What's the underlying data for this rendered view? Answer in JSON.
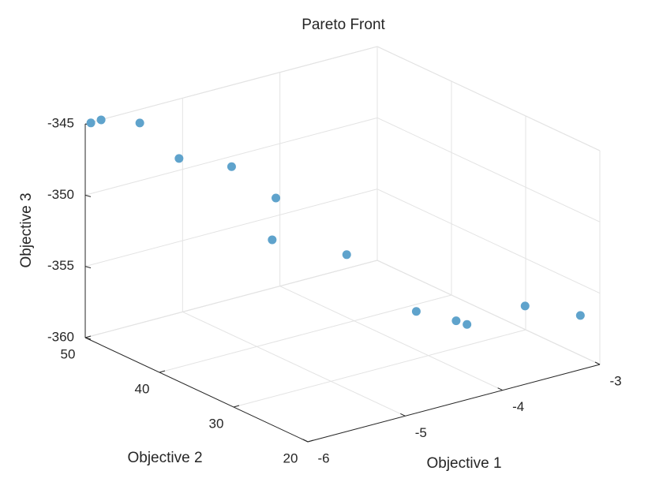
{
  "chart_data": {
    "type": "scatter3d",
    "title": "Pareto Front",
    "xlabel": "Objective 1",
    "ylabel": "Objective 2",
    "zlabel": "Objective 3",
    "x": [
      -5.95,
      -5.84,
      -5.63,
      -5.57,
      -5.19,
      -5.04,
      -5.2,
      -4.77,
      -4.36,
      -4.08,
      -4.06,
      -3.57,
      -3.04
    ],
    "y": [
      49.9,
      49.96,
      47.5,
      43,
      40.9,
      36.9,
      35.3,
      30.9,
      26.9,
      25.2,
      24.0,
      22.6,
      22.1
    ],
    "z": [
      -345,
      -345,
      -345,
      -346.5,
      -347.25,
      -348.75,
      -351,
      -351.75,
      -355.5,
      -356.25,
      -356.25,
      -355.5,
      -357
    ],
    "color": "#5fa3cc",
    "xlim": [
      -6,
      -3
    ],
    "ylim": [
      20,
      50
    ],
    "zlim": [
      -360,
      -345
    ],
    "xticks": [
      -6,
      -5,
      -4,
      -3
    ],
    "yticks": [
      20,
      30,
      40,
      50
    ],
    "zticks": [
      -360,
      -355,
      -350,
      -345
    ],
    "grid": true
  }
}
